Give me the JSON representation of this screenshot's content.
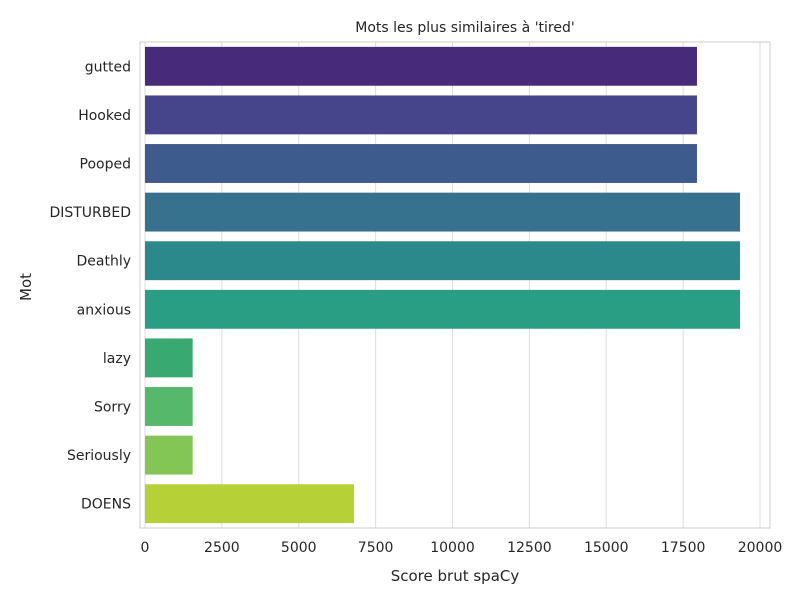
{
  "chart_data": {
    "type": "bar",
    "orientation": "horizontal",
    "title": "Mots les plus similaires à 'tired'",
    "xlabel": "Score brut spaCy",
    "ylabel": "Mot",
    "categories": [
      "gutted",
      "Hooked",
      "Pooped",
      "DISTURBED",
      "Deathly",
      "anxious",
      "lazy",
      "Sorry",
      "Seriously",
      "DOENS"
    ],
    "values": [
      17950,
      17950,
      17950,
      19350,
      19350,
      19350,
      1550,
      1550,
      1550,
      6800
    ],
    "colors": [
      "#472a7a",
      "#46448a",
      "#3e5b8e",
      "#36718e",
      "#2b898c",
      "#2a9d85",
      "#38a970",
      "#56b86b",
      "#83c655",
      "#b6d038"
    ],
    "xlim": [
      0,
      20000
    ],
    "xticks": [
      "0",
      "2500",
      "5000",
      "7500",
      "10000",
      "12500",
      "15000",
      "17500",
      "20000"
    ],
    "xtick_values": [
      0,
      2500,
      5000,
      7500,
      10000,
      12500,
      15000,
      17500,
      20000
    ],
    "grid": "vertical",
    "palette": "viridis"
  }
}
